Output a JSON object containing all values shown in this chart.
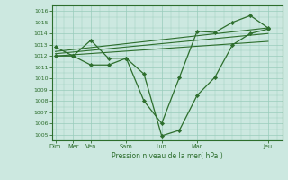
{
  "background_color": "#cce8e0",
  "grid_color": "#99ccbb",
  "line_color": "#2d6e2d",
  "spine_color": "#2d6e2d",
  "xlabel_text": "Pression niveau de la mer( hPa )",
  "ylim": [
    1004.5,
    1016.5
  ],
  "ytick_values": [
    1005,
    1006,
    1007,
    1008,
    1009,
    1010,
    1011,
    1012,
    1013,
    1014,
    1015,
    1016
  ],
  "xtick_positions": [
    0,
    1,
    2,
    4,
    6,
    8,
    12
  ],
  "xtick_labels": [
    "Dim",
    "Mer",
    "Ven",
    "Sam",
    "Lun",
    "Mar",
    "Jeu"
  ],
  "xlim": [
    -0.2,
    12.8
  ],
  "series_main_x": [
    0,
    1,
    2,
    3,
    4,
    5,
    6,
    7,
    8,
    9,
    10,
    11,
    12
  ],
  "series_main_y": [
    1012.8,
    1012.0,
    1013.4,
    1011.8,
    1011.8,
    1008.0,
    1006.0,
    1010.1,
    1014.2,
    1014.1,
    1015.0,
    1015.6,
    1014.5
  ],
  "series_low_x": [
    0,
    1,
    2,
    3,
    4,
    5,
    6,
    7,
    8,
    9,
    10,
    11,
    12
  ],
  "series_low_y": [
    1012.0,
    1012.0,
    1011.2,
    1011.2,
    1011.8,
    1010.4,
    1004.9,
    1005.4,
    1008.5,
    1010.1,
    1013.0,
    1014.0,
    1014.4
  ],
  "series_trend1_x": [
    0,
    12
  ],
  "series_trend1_y": [
    1012.0,
    1013.3
  ],
  "series_trend2_x": [
    0,
    12
  ],
  "series_trend2_y": [
    1012.2,
    1014.0
  ],
  "series_trend3_x": [
    0,
    12
  ],
  "series_trend3_y": [
    1012.4,
    1014.5
  ]
}
